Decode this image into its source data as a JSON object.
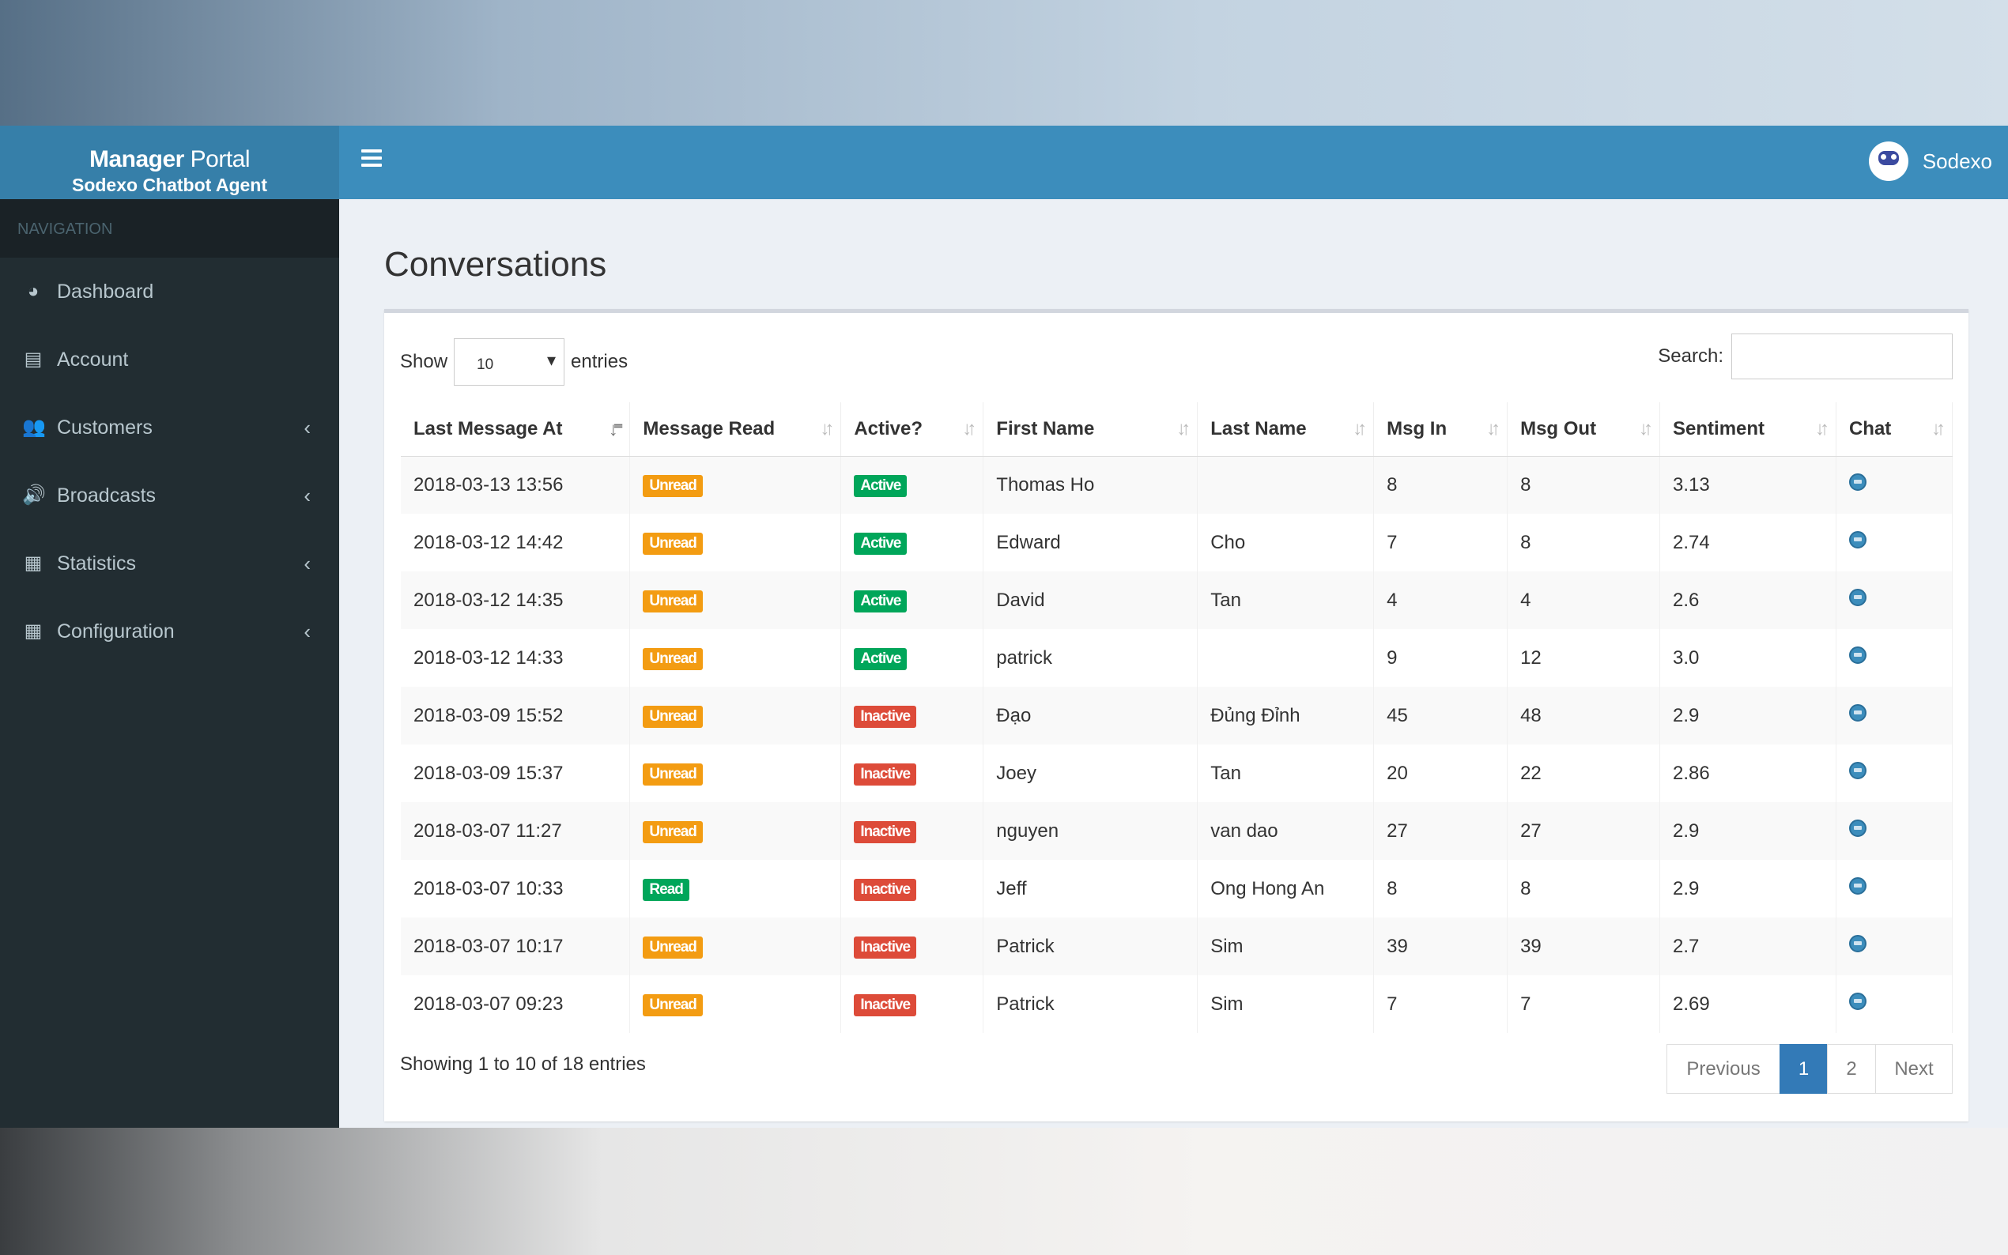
{
  "app": {
    "title_bold": "Manager",
    "title_rest": " Portal",
    "subtitle": "Sodexo Chatbot Agent",
    "user": "Sodexo"
  },
  "sidebar": {
    "header": "NAVIGATION",
    "items": [
      {
        "label": "Dashboard",
        "icon": "dashboard-icon",
        "glyph": "◕",
        "chevron": false
      },
      {
        "label": "Account",
        "icon": "book-icon",
        "glyph": "▤",
        "chevron": false
      },
      {
        "label": "Customers",
        "icon": "users-icon",
        "glyph": "👥",
        "chevron": true
      },
      {
        "label": "Broadcasts",
        "icon": "volume-icon",
        "glyph": "🔊",
        "chevron": true
      },
      {
        "label": "Statistics",
        "icon": "file-icon",
        "glyph": "▦",
        "chevron": true
      },
      {
        "label": "Configuration",
        "icon": "file-icon",
        "glyph": "▦",
        "chevron": true
      }
    ]
  },
  "page": {
    "title": "Conversations"
  },
  "table_controls": {
    "show": "Show",
    "entries_value": "10",
    "entries": "entries",
    "search_label": "Search:",
    "search_value": ""
  },
  "colors": {
    "unread": "#f39c12",
    "read": "#00a65a",
    "active": "#00a65a",
    "inactive": "#dd4b39",
    "primary": "#3c8dbc"
  },
  "columns": [
    "Last Message At",
    "Message Read",
    "Active?",
    "First Name",
    "Last Name",
    "Msg In",
    "Msg Out",
    "Sentiment",
    "Chat"
  ],
  "rows": [
    [
      "2018-03-13 13:56",
      "Unread",
      "Active",
      "Thomas Ho",
      "",
      "8",
      "8",
      "3.13"
    ],
    [
      "2018-03-12 14:42",
      "Unread",
      "Active",
      "Edward",
      "Cho",
      "7",
      "8",
      "2.74"
    ],
    [
      "2018-03-12 14:35",
      "Unread",
      "Active",
      "David",
      "Tan",
      "4",
      "4",
      "2.6"
    ],
    [
      "2018-03-12 14:33",
      "Unread",
      "Active",
      "patrick",
      "",
      "9",
      "12",
      "3.0"
    ],
    [
      "2018-03-09 15:52",
      "Unread",
      "Inactive",
      "Đạo",
      "Đủng Đỉnh",
      "45",
      "48",
      "2.9"
    ],
    [
      "2018-03-09 15:37",
      "Unread",
      "Inactive",
      "Joey",
      "Tan",
      "20",
      "22",
      "2.86"
    ],
    [
      "2018-03-07 11:27",
      "Unread",
      "Inactive",
      "nguyen",
      "van dao",
      "27",
      "27",
      "2.9"
    ],
    [
      "2018-03-07 10:33",
      "Read",
      "Inactive",
      "Jeff",
      "Ong Hong An",
      "8",
      "8",
      "2.9"
    ],
    [
      "2018-03-07 10:17",
      "Unread",
      "Inactive",
      "Patrick",
      "Sim",
      "39",
      "39",
      "2.7"
    ],
    [
      "2018-03-07 09:23",
      "Unread",
      "Inactive",
      "Patrick",
      "Sim",
      "7",
      "7",
      "2.69"
    ]
  ],
  "footer": {
    "info": "Showing 1 to 10 of 18 entries",
    "previous": "Previous",
    "pages": [
      "1",
      "2"
    ],
    "current_page": "1",
    "next": "Next"
  }
}
